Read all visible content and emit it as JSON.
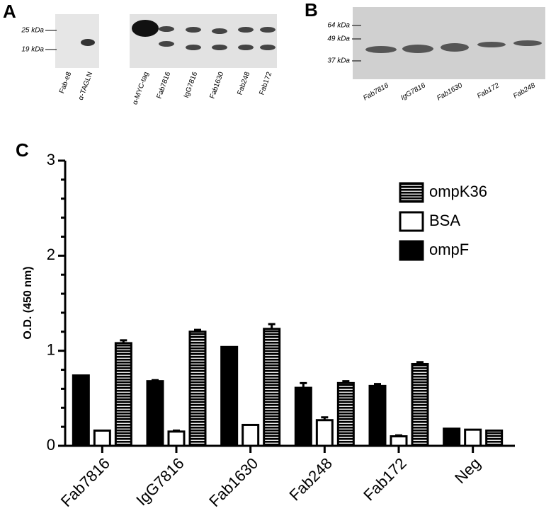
{
  "panel_a": {
    "label": "A",
    "markers": [
      "25 kDa",
      "19 kDa"
    ],
    "lanes_left": [
      "Fab-e8",
      "α-TAGLN"
    ],
    "lanes_right": [
      "α-MYC-tag",
      "Fab7816",
      "IgG7816",
      "Fab1630",
      "Fab248",
      "Fab172"
    ]
  },
  "panel_b": {
    "label": "B",
    "markers": [
      "64 kDa",
      "49 kDa",
      "37 kDa"
    ],
    "lanes": [
      "Fab7816",
      "IgG7816",
      "Fab1630",
      "Fab172",
      "Fab248"
    ]
  },
  "chart_data": {
    "type": "bar",
    "panel_label": "C",
    "y_label": "O.D. (450 nm)",
    "categories": [
      "Fab7816",
      "IgG7816",
      "Fab1630",
      "Fab248",
      "Fab172",
      "Neg"
    ],
    "series": [
      {
        "name": "ompF",
        "color": "#000000",
        "values": [
          0.74,
          0.68,
          1.04,
          0.61,
          0.63,
          0.18
        ],
        "errors": [
          0,
          0.01,
          0,
          0.05,
          0.02,
          0
        ]
      },
      {
        "name": "BSA",
        "color": "#ffffff",
        "values": [
          0.16,
          0.15,
          0.22,
          0.27,
          0.1,
          0.17
        ],
        "errors": [
          0,
          0.01,
          0,
          0.03,
          0.01,
          0
        ]
      },
      {
        "name": "ompK36",
        "color": "#000000",
        "hatch": "horizontal",
        "values": [
          1.08,
          1.2,
          1.23,
          0.66,
          0.86,
          0.16
        ],
        "errors": [
          0.03,
          0.02,
          0.05,
          0.02,
          0.02,
          0
        ]
      }
    ],
    "ylim": [
      0,
      3
    ],
    "yticks": [
      0,
      1,
      2,
      3
    ],
    "legend": "upper right"
  }
}
